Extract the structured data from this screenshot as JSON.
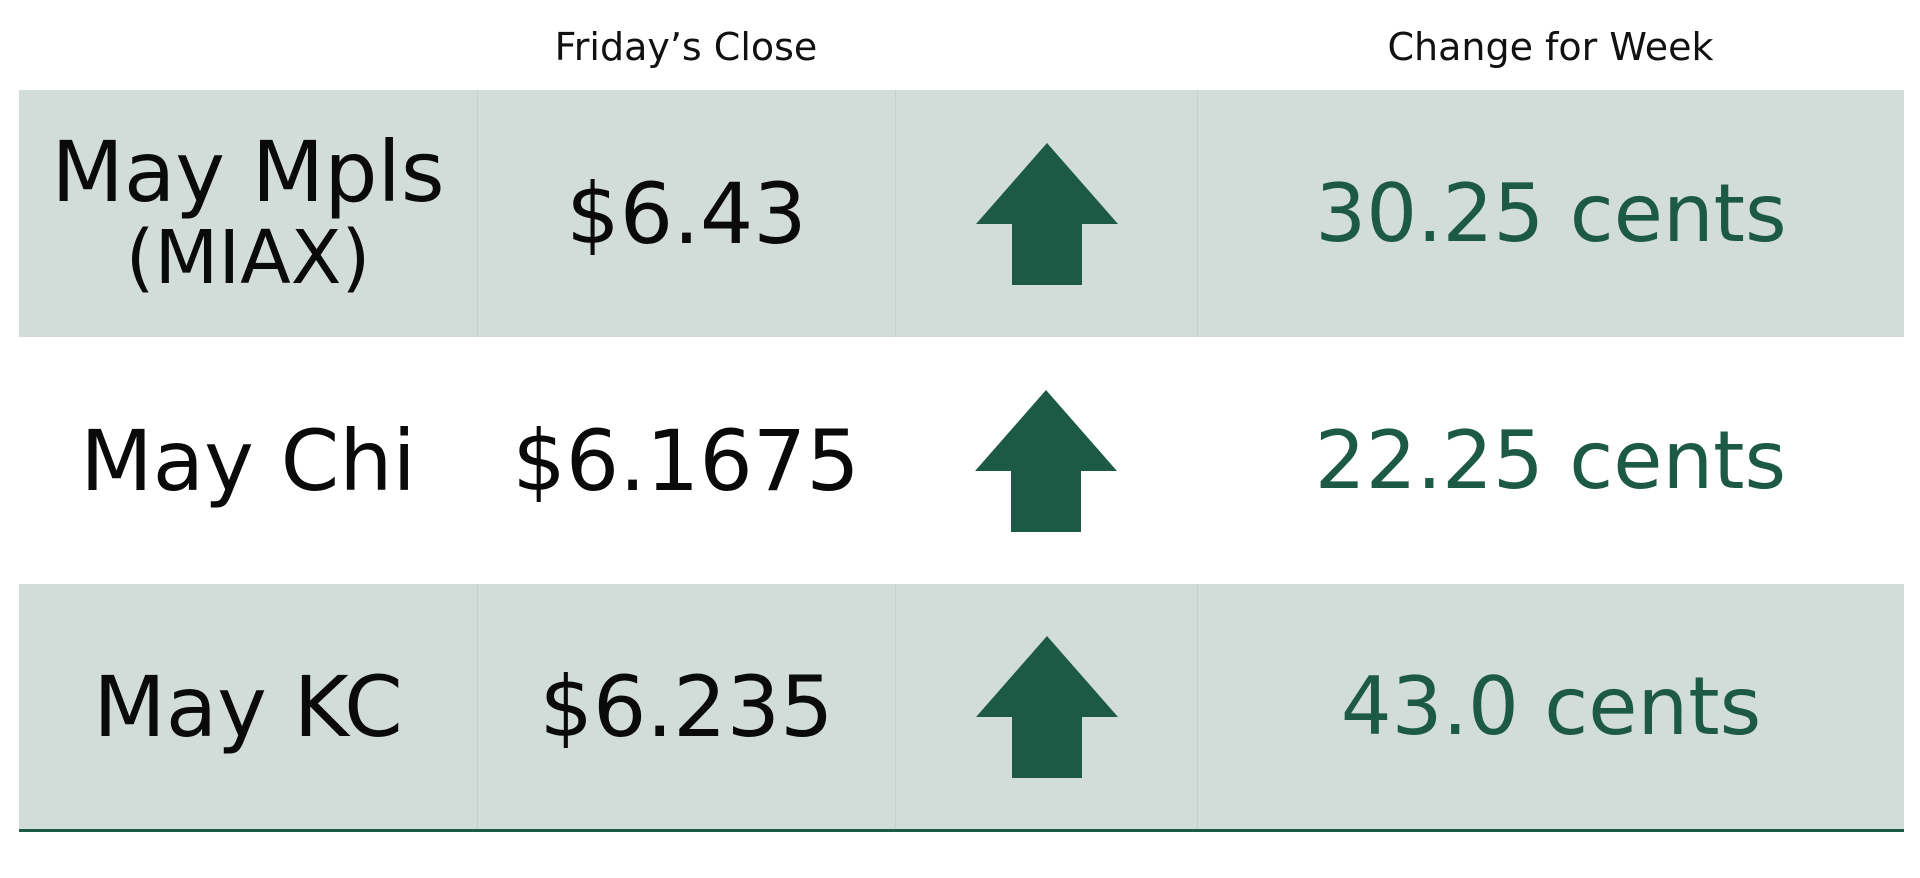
{
  "headers": {
    "close": "Friday’s Close",
    "change": "Change for Week"
  },
  "colors": {
    "shaded_row": "#d2ddd9",
    "accent_green": "#1d5a45"
  },
  "rows": [
    {
      "market_line1": "May Mpls",
      "market_line2": "(MIAX)",
      "close": "$6.43",
      "direction_icon": "up-arrow-icon",
      "change": "30.25 cents"
    },
    {
      "market_line1": "May Chi",
      "close": "$6.1675",
      "direction_icon": "up-arrow-icon",
      "change": "22.25 cents"
    },
    {
      "market_line1": "May KC",
      "close": "$6.235",
      "direction_icon": "up-arrow-icon",
      "change": "43.0 cents"
    }
  ]
}
